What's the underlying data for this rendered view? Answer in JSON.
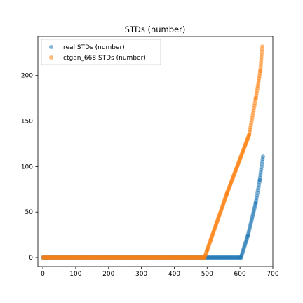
{
  "chart_data": {
    "type": "scatter",
    "title": "STDs (number)",
    "xlabel": "",
    "ylabel": "",
    "xlim": [
      -15,
      700
    ],
    "ylim": [
      -10,
      243
    ],
    "xticks": [
      0,
      100,
      200,
      300,
      400,
      500,
      600,
      700
    ],
    "yticks": [
      0,
      50,
      100,
      150,
      200
    ],
    "grid": false,
    "legend_position": "upper-left",
    "series": [
      {
        "name": "real STDs (number)",
        "color": "#1f77b4",
        "alpha": 0.55,
        "points": [
          {
            "x0": 0,
            "x1": 603,
            "y": 0,
            "n": 200
          },
          {
            "x0": 603,
            "x1": 624,
            "y0": 0,
            "y1": 24,
            "n": 15
          },
          {
            "x0": 624,
            "x1": 648,
            "y0": 24,
            "y1": 60,
            "n": 18
          },
          {
            "x0": 648,
            "x1": 660,
            "y0": 60,
            "y1": 85,
            "n": 10
          },
          {
            "x0": 660,
            "x1": 670,
            "y0": 85,
            "y1": 111,
            "n": 10
          }
        ]
      },
      {
        "name": "ctgan_668 STDs (number)",
        "color": "#ff7f0e",
        "alpha": 0.55,
        "points": [
          {
            "x0": 0,
            "x1": 492,
            "y": 0,
            "n": 165
          },
          {
            "x0": 492,
            "x1": 500,
            "y0": 0,
            "y1": 8,
            "n": 6
          },
          {
            "x0": 500,
            "x1": 560,
            "y0": 8,
            "y1": 70,
            "n": 45
          },
          {
            "x0": 560,
            "x1": 628,
            "y0": 70,
            "y1": 135,
            "n": 50
          },
          {
            "x0": 628,
            "x1": 648,
            "y0": 135,
            "y1": 175,
            "n": 16
          },
          {
            "x0": 648,
            "x1": 662,
            "y0": 175,
            "y1": 205,
            "n": 12
          },
          {
            "x0": 662,
            "x1": 668,
            "y0": 205,
            "y1": 232,
            "n": 10
          }
        ]
      }
    ]
  }
}
